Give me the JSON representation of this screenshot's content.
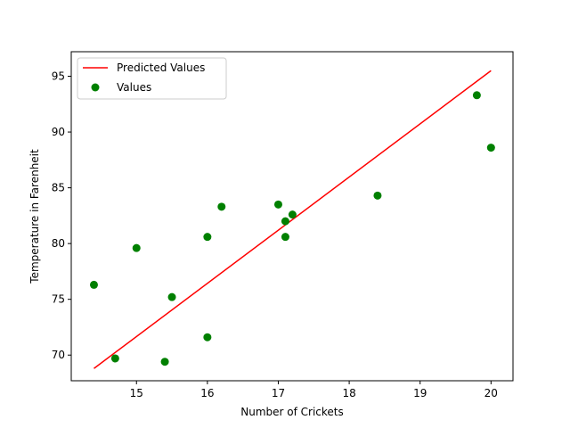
{
  "chart_data": {
    "type": "scatter",
    "xlabel": "Number of Crickets",
    "ylabel": "Temperature in Farenheit",
    "xlim": [
      14.08,
      20.31
    ],
    "ylim": [
      67.7,
      97.2
    ],
    "xticks": [
      15,
      16,
      17,
      18,
      19,
      20
    ],
    "yticks": [
      70,
      75,
      80,
      85,
      90,
      95
    ],
    "grid": false,
    "legend_position": "top-left",
    "series": [
      {
        "name": "Predicted Values",
        "kind": "line",
        "color": "#ff0000",
        "x": [
          14.4,
          20.0
        ],
        "y": [
          68.8,
          95.5
        ]
      },
      {
        "name": "Values",
        "kind": "scatter",
        "color": "#008000",
        "x": [
          14.4,
          14.7,
          15.0,
          15.4,
          15.5,
          16.0,
          16.0,
          16.2,
          17.0,
          17.1,
          17.1,
          17.2,
          18.4,
          19.8,
          20.0
        ],
        "y": [
          76.3,
          69.7,
          79.6,
          69.4,
          75.2,
          71.6,
          80.6,
          83.3,
          83.5,
          82.0,
          80.6,
          82.6,
          84.3,
          93.3,
          88.6
        ]
      }
    ]
  }
}
